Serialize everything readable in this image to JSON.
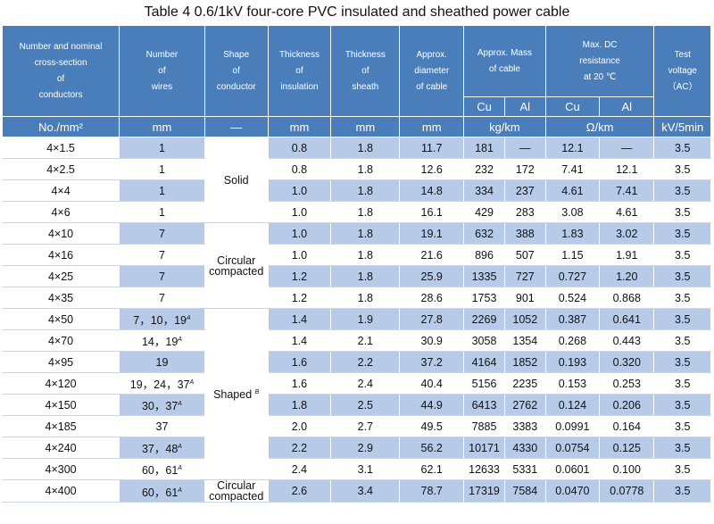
{
  "title": "Table 4    0.6/1kV four-core PVC insulated and sheathed power cable",
  "headers": {
    "conductor": [
      "Number and nominal",
      "cross-section",
      "of",
      "conductors"
    ],
    "wires": [
      "Number",
      "of",
      "wires"
    ],
    "shape": [
      "Shape",
      "of",
      "conductor"
    ],
    "insulation": [
      "Thickness",
      "of",
      "insulation"
    ],
    "sheath": [
      "Thickness",
      "of",
      "sheath"
    ],
    "diameter": [
      "Approx.",
      "diameter",
      "of cable"
    ],
    "mass": [
      "Approx. Mass",
      "of cable"
    ],
    "resistance": [
      "Max. DC",
      "resistance",
      "at 20 ℃"
    ],
    "voltage": [
      "Test",
      "voltage",
      "（AC）"
    ],
    "cu": "Cu",
    "al": "Al"
  },
  "units": [
    "No./mm²",
    "mm",
    "—",
    "mm",
    "mm",
    "mm",
    "kg/km",
    "Ω/km",
    "kV/5min"
  ],
  "shapes": {
    "solid": "Solid",
    "circular_compacted_1": "Circular",
    "circular_compacted_2": "compacted",
    "shaped": "Shaped",
    "shaped_note": "B",
    "circular_compacted_last_1": "Circular",
    "circular_compacted_last_2": "compacted"
  },
  "rows": [
    {
      "size": "4×1.5",
      "wires": "1",
      "wires_note": "",
      "ins": "0.8",
      "sheath": "1.8",
      "dia": "11.7",
      "m_cu": "181",
      "m_al": "—",
      "r_cu": "12.1",
      "r_al": "—",
      "v": "3.5"
    },
    {
      "size": "4×2.5",
      "wires": "1",
      "wires_note": "",
      "ins": "0.8",
      "sheath": "1.8",
      "dia": "12.6",
      "m_cu": "232",
      "m_al": "172",
      "r_cu": "7.41",
      "r_al": "12.1",
      "v": "3.5"
    },
    {
      "size": "4×4",
      "wires": "1",
      "wires_note": "",
      "ins": "1.0",
      "sheath": "1.8",
      "dia": "14.8",
      "m_cu": "334",
      "m_al": "237",
      "r_cu": "4.61",
      "r_al": "7.41",
      "v": "3.5"
    },
    {
      "size": "4×6",
      "wires": "1",
      "wires_note": "",
      "ins": "1.0",
      "sheath": "1.8",
      "dia": "16.1",
      "m_cu": "429",
      "m_al": "283",
      "r_cu": "3.08",
      "r_al": "4.61",
      "v": "3.5"
    },
    {
      "size": "4×10",
      "wires": "7",
      "wires_note": "",
      "ins": "1.0",
      "sheath": "1.8",
      "dia": "19.1",
      "m_cu": "632",
      "m_al": "388",
      "r_cu": "1.83",
      "r_al": "3.02",
      "v": "3.5"
    },
    {
      "size": "4×16",
      "wires": "7",
      "wires_note": "",
      "ins": "1.0",
      "sheath": "1.8",
      "dia": "21.6",
      "m_cu": "896",
      "m_al": "507",
      "r_cu": "1.15",
      "r_al": "1.91",
      "v": "3.5"
    },
    {
      "size": "4×25",
      "wires": "7",
      "wires_note": "",
      "ins": "1.2",
      "sheath": "1.8",
      "dia": "25.9",
      "m_cu": "1335",
      "m_al": "727",
      "r_cu": "0.727",
      "r_al": "1.20",
      "v": "3.5"
    },
    {
      "size": "4×35",
      "wires": "7",
      "wires_note": "",
      "ins": "1.2",
      "sheath": "1.8",
      "dia": "28.6",
      "m_cu": "1753",
      "m_al": "901",
      "r_cu": "0.524",
      "r_al": "0.868",
      "v": "3.5"
    },
    {
      "size": "4×50",
      "wires": "7，10，19",
      "wires_note": "A",
      "ins": "1.4",
      "sheath": "1.9",
      "dia": "27.8",
      "m_cu": "2269",
      "m_al": "1052",
      "r_cu": "0.387",
      "r_al": "0.641",
      "v": "3.5"
    },
    {
      "size": "4×70",
      "wires": "14，19",
      "wires_note": "A",
      "ins": "1.4",
      "sheath": "2.1",
      "dia": "30.9",
      "m_cu": "3058",
      "m_al": "1354",
      "r_cu": "0.268",
      "r_al": "0.443",
      "v": "3.5"
    },
    {
      "size": "4×95",
      "wires": "19",
      "wires_note": "",
      "ins": "1.6",
      "sheath": "2.2",
      "dia": "37.2",
      "m_cu": "4164",
      "m_al": "1852",
      "r_cu": "0.193",
      "r_al": "0.320",
      "v": "3.5"
    },
    {
      "size": "4×120",
      "wires": "19，24，37",
      "wires_note": "A",
      "ins": "1.6",
      "sheath": "2.4",
      "dia": "40.4",
      "m_cu": "5156",
      "m_al": "2235",
      "r_cu": "0.153",
      "r_al": "0.253",
      "v": "3.5"
    },
    {
      "size": "4×150",
      "wires": "30，37",
      "wires_note": "A",
      "ins": "1.8",
      "sheath": "2.5",
      "dia": "44.9",
      "m_cu": "6413",
      "m_al": "2762",
      "r_cu": "0.124",
      "r_al": "0.206",
      "v": "3.5"
    },
    {
      "size": "4×185",
      "wires": "37",
      "wires_note": "",
      "ins": "2.0",
      "sheath": "2.7",
      "dia": "49.5",
      "m_cu": "7885",
      "m_al": "3383",
      "r_cu": "0.0991",
      "r_al": "0.164",
      "v": "3.5"
    },
    {
      "size": "4×240",
      "wires": "37，48",
      "wires_note": "A",
      "ins": "2.2",
      "sheath": "2.9",
      "dia": "56.2",
      "m_cu": "10171",
      "m_al": "4330",
      "r_cu": "0.0754",
      "r_al": "0.125",
      "v": "3.5"
    },
    {
      "size": "4×300",
      "wires": "60，61",
      "wires_note": "A",
      "ins": "2.4",
      "sheath": "3.1",
      "dia": "62.1",
      "m_cu": "12633",
      "m_al": "5331",
      "r_cu": "0.0601",
      "r_al": "0.100",
      "v": "3.5"
    },
    {
      "size": "4×400",
      "wires": "60，61",
      "wires_note": "A",
      "ins": "2.6",
      "sheath": "3.4",
      "dia": "78.7",
      "m_cu": "17319",
      "m_al": "7584",
      "r_cu": "0.0470",
      "r_al": "0.0778",
      "v": "3.5"
    }
  ]
}
